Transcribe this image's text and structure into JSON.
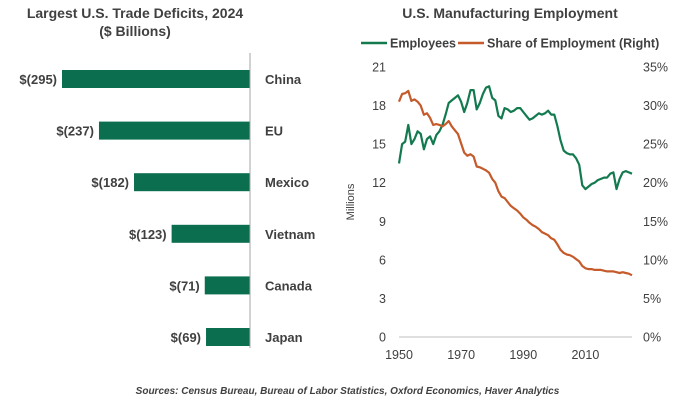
{
  "chart_data": [
    {
      "type": "bar",
      "orientation": "horizontal",
      "title": "Largest U.S. Trade Deficits, 2024",
      "subtitle": "($ Billions)",
      "categories": [
        "China",
        "EU",
        "Mexico",
        "Vietnam",
        "Canada",
        "Japan"
      ],
      "values": [
        -295,
        -237,
        -182,
        -123,
        -71,
        -69
      ],
      "value_labels": [
        "$(295)",
        "$(237)",
        "$(182)",
        "$(123)",
        "$(71)",
        "$(69)"
      ],
      "bar_color": "#0b6e4f"
    },
    {
      "type": "line",
      "title": "U.S. Manufacturing  Employment",
      "ylabel": "Millions",
      "xlim": [
        1950,
        2025
      ],
      "ylim": [
        0,
        21
      ],
      "y2lim": [
        0,
        35
      ],
      "x_ticks": [
        "1950",
        "1970",
        "1990",
        "2010"
      ],
      "y_ticks": [
        "0",
        "3",
        "6",
        "9",
        "12",
        "15",
        "18",
        "21"
      ],
      "y2_ticks": [
        "0%",
        "5%",
        "10%",
        "15%",
        "20%",
        "25%",
        "30%",
        "35%"
      ],
      "legend_position": "top",
      "series": [
        {
          "name": "Employees",
          "axis": "left",
          "color": "#137a4f",
          "x": [
            1950,
            1951,
            1952,
            1953,
            1954,
            1955,
            1956,
            1957,
            1958,
            1959,
            1960,
            1961,
            1962,
            1963,
            1964,
            1965,
            1966,
            1967,
            1968,
            1969,
            1970,
            1971,
            1972,
            1973,
            1974,
            1975,
            1976,
            1977,
            1978,
            1979,
            1980,
            1981,
            1982,
            1983,
            1984,
            1985,
            1986,
            1987,
            1988,
            1989,
            1990,
            1991,
            1992,
            1993,
            1994,
            1995,
            1996,
            1997,
            1998,
            1999,
            2000,
            2001,
            2002,
            2003,
            2004,
            2005,
            2006,
            2007,
            2008,
            2009,
            2010,
            2011,
            2012,
            2013,
            2014,
            2015,
            2016,
            2017,
            2018,
            2019,
            2020,
            2021,
            2022,
            2023,
            2024,
            2025
          ],
          "values": [
            13.5,
            15.0,
            15.2,
            16.5,
            15.0,
            15.4,
            16.0,
            15.8,
            14.6,
            15.4,
            15.6,
            15.0,
            15.7,
            16.0,
            16.5,
            17.3,
            18.2,
            18.4,
            18.6,
            18.8,
            18.3,
            17.5,
            18.2,
            19.2,
            19.2,
            17.7,
            18.2,
            18.9,
            19.4,
            19.5,
            18.6,
            18.4,
            17.2,
            17.0,
            17.8,
            17.7,
            17.5,
            17.6,
            17.8,
            17.8,
            17.5,
            17.2,
            16.9,
            17.0,
            17.2,
            17.4,
            17.3,
            17.4,
            17.6,
            17.3,
            17.3,
            16.4,
            15.3,
            14.5,
            14.3,
            14.2,
            14.2,
            13.9,
            13.4,
            11.8,
            11.5,
            11.7,
            11.9,
            12.0,
            12.2,
            12.3,
            12.4,
            12.4,
            12.7,
            12.8,
            11.5,
            12.3,
            12.8,
            12.9,
            12.8,
            12.7
          ]
        },
        {
          "name": "Share of Employment (Right)",
          "axis": "right",
          "color": "#c55a2b",
          "x": [
            1950,
            1951,
            1952,
            1953,
            1954,
            1955,
            1956,
            1957,
            1958,
            1959,
            1960,
            1961,
            1962,
            1963,
            1964,
            1965,
            1966,
            1967,
            1968,
            1969,
            1970,
            1971,
            1972,
            1973,
            1974,
            1975,
            1976,
            1977,
            1978,
            1979,
            1980,
            1981,
            1982,
            1983,
            1984,
            1985,
            1986,
            1987,
            1988,
            1989,
            1990,
            1991,
            1992,
            1993,
            1994,
            1995,
            1996,
            1997,
            1998,
            1999,
            2000,
            2001,
            2002,
            2003,
            2004,
            2005,
            2006,
            2007,
            2008,
            2009,
            2010,
            2011,
            2012,
            2013,
            2014,
            2015,
            2016,
            2017,
            2018,
            2019,
            2020,
            2021,
            2022,
            2023,
            2024,
            2025
          ],
          "values": [
            30.5,
            31.5,
            31.6,
            31.9,
            30.6,
            30.8,
            30.5,
            30.0,
            28.8,
            29.0,
            28.4,
            27.5,
            27.6,
            27.5,
            27.3,
            27.6,
            28.0,
            27.3,
            26.8,
            26.3,
            25.1,
            23.9,
            23.5,
            23.7,
            23.4,
            22.1,
            22.0,
            21.8,
            21.6,
            21.3,
            20.5,
            20.0,
            18.9,
            18.2,
            18.0,
            17.5,
            17.0,
            16.7,
            16.4,
            16.0,
            15.5,
            15.2,
            14.8,
            14.5,
            14.3,
            14.0,
            13.6,
            13.4,
            13.2,
            12.8,
            12.6,
            12.0,
            11.3,
            10.9,
            10.7,
            10.6,
            10.4,
            10.1,
            9.8,
            9.2,
            8.9,
            8.8,
            8.8,
            8.7,
            8.7,
            8.7,
            8.6,
            8.5,
            8.5,
            8.5,
            8.4,
            8.3,
            8.4,
            8.3,
            8.2,
            8.0
          ]
        }
      ]
    }
  ],
  "source": "Sources: Census Bureau, Bureau of Labor Statistics, Oxford Economics, Haver Analytics"
}
